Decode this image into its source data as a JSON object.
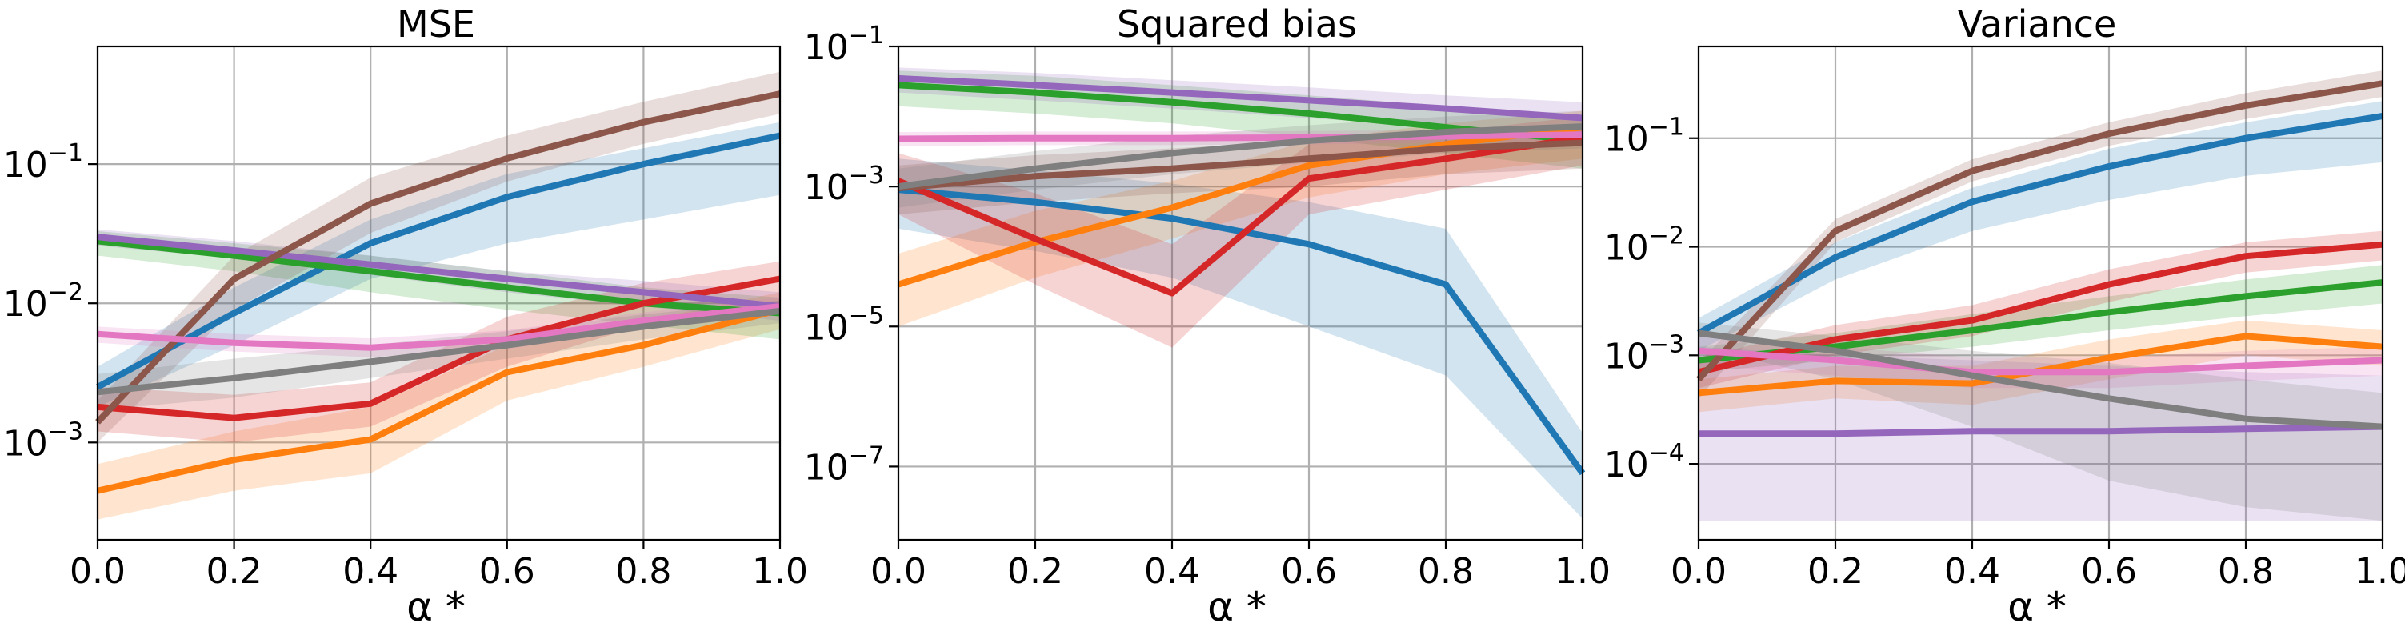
{
  "chart_data": [
    {
      "type": "line",
      "title": "MSE",
      "xlabel": "α *",
      "ylabel": "",
      "yscale": "log",
      "xlim": [
        0,
        1
      ],
      "ylim": [
        0.0002,
        0.7
      ],
      "grid": true,
      "x": [
        0.0,
        0.2,
        0.4,
        0.6,
        0.8,
        1.0
      ],
      "xticks": [
        "0.0",
        "0.2",
        "0.4",
        "0.6",
        "0.8",
        "1.0"
      ],
      "yticks": [
        {
          "value": 0.001,
          "base": "10",
          "exp": "−3"
        },
        {
          "value": 0.01,
          "base": "10",
          "exp": "−2"
        },
        {
          "value": 0.1,
          "base": "10",
          "exp": "−1"
        }
      ],
      "series": [
        {
          "color": "#1f77b4",
          "values": [
            0.0025,
            0.0085,
            0.027,
            0.058,
            0.1,
            0.16
          ],
          "lower": [
            0.0018,
            0.005,
            0.015,
            0.027,
            0.04,
            0.06
          ],
          "upper": [
            0.0035,
            0.013,
            0.04,
            0.085,
            0.13,
            0.2
          ]
        },
        {
          "color": "#ff7f0e",
          "values": [
            0.00045,
            0.00075,
            0.00105,
            0.0032,
            0.005,
            0.009
          ],
          "lower": [
            0.00028,
            0.00045,
            0.0006,
            0.002,
            0.0035,
            0.0065
          ],
          "upper": [
            0.0007,
            0.0012,
            0.0018,
            0.005,
            0.0075,
            0.012
          ]
        },
        {
          "color": "#2ca02c",
          "values": [
            0.028,
            0.022,
            0.017,
            0.013,
            0.01,
            0.0085
          ],
          "lower": [
            0.022,
            0.017,
            0.012,
            0.009,
            0.007,
            0.0055
          ],
          "upper": [
            0.033,
            0.027,
            0.022,
            0.017,
            0.013,
            0.011
          ]
        },
        {
          "color": "#d62728",
          "values": [
            0.0018,
            0.0015,
            0.0019,
            0.0055,
            0.01,
            0.015
          ],
          "lower": [
            0.0012,
            0.001,
            0.0013,
            0.0035,
            0.007,
            0.01
          ],
          "upper": [
            0.0025,
            0.0022,
            0.0027,
            0.008,
            0.014,
            0.02
          ]
        },
        {
          "color": "#9467bd",
          "values": [
            0.03,
            0.024,
            0.019,
            0.015,
            0.012,
            0.0095
          ],
          "lower": [
            0.026,
            0.021,
            0.016,
            0.012,
            0.0095,
            0.0075
          ],
          "upper": [
            0.034,
            0.028,
            0.022,
            0.017,
            0.0145,
            0.012
          ]
        },
        {
          "color": "#8c564b",
          "values": [
            0.0014,
            0.015,
            0.052,
            0.11,
            0.2,
            0.32
          ],
          "lower": [
            0.001,
            0.009,
            0.032,
            0.075,
            0.14,
            0.23
          ],
          "upper": [
            0.002,
            0.022,
            0.08,
            0.16,
            0.28,
            0.46
          ]
        },
        {
          "color": "#e377c2",
          "values": [
            0.006,
            0.0052,
            0.0048,
            0.0055,
            0.0075,
            0.0095
          ],
          "lower": [
            0.0052,
            0.0045,
            0.0041,
            0.0047,
            0.0065,
            0.0082
          ],
          "upper": [
            0.0068,
            0.006,
            0.0056,
            0.0064,
            0.0086,
            0.011
          ]
        },
        {
          "color": "#7f7f7f",
          "values": [
            0.0023,
            0.0029,
            0.0038,
            0.005,
            0.0068,
            0.0088
          ],
          "lower": [
            0.0017,
            0.0021,
            0.0029,
            0.004,
            0.0055,
            0.0072
          ],
          "upper": [
            0.0031,
            0.004,
            0.005,
            0.0063,
            0.0083,
            0.0105
          ]
        }
      ]
    },
    {
      "type": "line",
      "title": "Squared bias",
      "xlabel": "α *",
      "ylabel": "",
      "yscale": "log",
      "xlim": [
        0,
        1
      ],
      "ylim": [
        9e-09,
        0.1
      ],
      "grid": true,
      "x": [
        0.0,
        0.2,
        0.4,
        0.6,
        0.8,
        1.0
      ],
      "xticks": [
        "0.0",
        "0.2",
        "0.4",
        "0.6",
        "0.8",
        "1.0"
      ],
      "yticks": [
        {
          "value": 1e-07,
          "base": "10",
          "exp": "−7"
        },
        {
          "value": 1e-05,
          "base": "10",
          "exp": "−5"
        },
        {
          "value": 0.001,
          "base": "10",
          "exp": "−3"
        },
        {
          "value": 0.1,
          "base": "10",
          "exp": "−1"
        }
      ],
      "series": [
        {
          "color": "#1f77b4",
          "values": [
            0.0009,
            0.0006,
            0.00035,
            0.00015,
            4e-05,
            8e-08
          ],
          "lower": [
            0.00025,
            0.00012,
            5e-05,
            1e-05,
            2e-06,
            1.8e-08
          ],
          "upper": [
            0.0025,
            0.0017,
            0.0011,
            0.0006,
            0.00025,
            3e-07
          ]
        },
        {
          "color": "#ff7f0e",
          "values": [
            4e-05,
            0.00016,
            0.0005,
            0.002,
            0.004,
            0.007
          ],
          "lower": [
            1e-05,
            5e-05,
            0.00018,
            0.0007,
            0.0015,
            0.0025
          ],
          "upper": [
            0.00011,
            0.00045,
            0.0012,
            0.0045,
            0.008,
            0.012
          ]
        },
        {
          "color": "#2ca02c",
          "values": [
            0.028,
            0.022,
            0.016,
            0.011,
            0.007,
            0.0045
          ],
          "lower": [
            0.014,
            0.011,
            0.008,
            0.005,
            0.003,
            0.0018
          ],
          "upper": [
            0.045,
            0.038,
            0.028,
            0.02,
            0.014,
            0.01
          ]
        },
        {
          "color": "#d62728",
          "values": [
            0.0012,
            0.00018,
            3e-05,
            0.0013,
            0.0025,
            0.005
          ],
          "lower": [
            0.0004,
            4e-05,
            5e-06,
            0.0004,
            0.0009,
            0.002
          ],
          "upper": [
            0.003,
            0.0008,
            0.00015,
            0.004,
            0.006,
            0.01
          ]
        },
        {
          "color": "#9467bd",
          "values": [
            0.035,
            0.028,
            0.022,
            0.017,
            0.013,
            0.0095
          ],
          "lower": [
            0.022,
            0.017,
            0.013,
            0.0095,
            0.007,
            0.005
          ],
          "upper": [
            0.05,
            0.042,
            0.033,
            0.026,
            0.02,
            0.016
          ]
        },
        {
          "color": "#8c564b",
          "values": [
            0.00095,
            0.0014,
            0.0018,
            0.0025,
            0.0035,
            0.0042
          ],
          "lower": [
            0.0004,
            0.0006,
            0.0008,
            0.001,
            0.0015,
            0.0018
          ],
          "upper": [
            0.002,
            0.0028,
            0.0035,
            0.0045,
            0.006,
            0.0075
          ]
        },
        {
          "color": "#e377c2",
          "values": [
            0.0048,
            0.0049,
            0.0049,
            0.005,
            0.0052,
            0.0055
          ],
          "lower": [
            0.0038,
            0.0039,
            0.0039,
            0.004,
            0.0042,
            0.0045
          ],
          "upper": [
            0.006,
            0.0061,
            0.0061,
            0.0062,
            0.0064,
            0.0068
          ]
        },
        {
          "color": "#7f7f7f",
          "values": [
            0.001,
            0.0018,
            0.003,
            0.0045,
            0.006,
            0.0072
          ],
          "lower": [
            0.0005,
            0.0009,
            0.0015,
            0.0022,
            0.003,
            0.0035
          ],
          "upper": [
            0.0018,
            0.0032,
            0.0052,
            0.0075,
            0.01,
            0.012
          ]
        }
      ]
    },
    {
      "type": "line",
      "title": "Variance",
      "xlabel": "α *",
      "ylabel": "",
      "yscale": "log",
      "xlim": [
        0,
        1
      ],
      "ylim": [
        2e-05,
        0.7
      ],
      "grid": true,
      "x": [
        0.0,
        0.2,
        0.4,
        0.6,
        0.8,
        1.0
      ],
      "xticks": [
        "0.0",
        "0.2",
        "0.4",
        "0.6",
        "0.8",
        "1.0"
      ],
      "yticks": [
        {
          "value": 0.0001,
          "base": "10",
          "exp": "−4"
        },
        {
          "value": 0.001,
          "base": "10",
          "exp": "−3"
        },
        {
          "value": 0.01,
          "base": "10",
          "exp": "−2"
        },
        {
          "value": 0.1,
          "base": "10",
          "exp": "−1"
        }
      ],
      "series": [
        {
          "color": "#1f77b4",
          "values": [
            0.0016,
            0.008,
            0.026,
            0.055,
            0.1,
            0.16
          ],
          "lower": [
            0.0011,
            0.005,
            0.014,
            0.027,
            0.045,
            0.06
          ],
          "upper": [
            0.0022,
            0.011,
            0.035,
            0.08,
            0.14,
            0.22
          ]
        },
        {
          "color": "#ff7f0e",
          "values": [
            0.00045,
            0.00058,
            0.00055,
            0.00095,
            0.0015,
            0.0012
          ],
          "lower": [
            0.0003,
            0.0004,
            0.00035,
            0.0006,
            0.001,
            0.0008
          ],
          "upper": [
            0.0006,
            0.0008,
            0.0008,
            0.0014,
            0.0021,
            0.0017
          ]
        },
        {
          "color": "#2ca02c",
          "values": [
            0.0009,
            0.0012,
            0.0017,
            0.0025,
            0.0035,
            0.0047
          ],
          "lower": [
            0.0007,
            0.0009,
            0.0012,
            0.0017,
            0.0023,
            0.003
          ],
          "upper": [
            0.0012,
            0.0016,
            0.0024,
            0.0035,
            0.005,
            0.0068
          ]
        },
        {
          "color": "#d62728",
          "values": [
            0.0007,
            0.0014,
            0.0021,
            0.0045,
            0.0082,
            0.0105
          ],
          "lower": [
            0.0005,
            0.001,
            0.0015,
            0.0031,
            0.0058,
            0.0075
          ],
          "upper": [
            0.00095,
            0.0019,
            0.0029,
            0.0062,
            0.011,
            0.014
          ]
        },
        {
          "color": "#9467bd",
          "values": [
            0.00019,
            0.00019,
            0.0002,
            0.0002,
            0.00021,
            0.00022
          ],
          "lower": [
            3e-05,
            3e-05,
            3e-05,
            3e-05,
            3e-05,
            3e-05
          ],
          "upper": [
            0.0012,
            0.001,
            0.0009,
            0.0008,
            0.0007,
            0.00065
          ]
        },
        {
          "color": "#8c564b",
          "values": [
            0.0006,
            0.014,
            0.05,
            0.11,
            0.2,
            0.32
          ],
          "lower": [
            0.0004,
            0.011,
            0.04,
            0.085,
            0.15,
            0.24
          ],
          "upper": [
            0.00085,
            0.018,
            0.064,
            0.14,
            0.26,
            0.42
          ]
        },
        {
          "color": "#e377c2",
          "values": [
            0.0011,
            0.0009,
            0.0007,
            0.0007,
            0.0008,
            0.0009
          ],
          "lower": [
            0.0008,
            0.00065,
            0.0005,
            0.0005,
            0.00058,
            0.00065
          ],
          "upper": [
            0.0015,
            0.0012,
            0.00095,
            0.00095,
            0.0011,
            0.0012
          ]
        },
        {
          "color": "#7f7f7f",
          "values": [
            0.0016,
            0.0011,
            0.00065,
            0.0004,
            0.00026,
            0.00022
          ],
          "lower": [
            0.0012,
            0.0006,
            0.00022,
            7e-05,
            4e-05,
            3e-05
          ],
          "upper": [
            0.002,
            0.0015,
            0.0011,
            0.00085,
            0.0006,
            0.00045
          ]
        }
      ]
    }
  ]
}
